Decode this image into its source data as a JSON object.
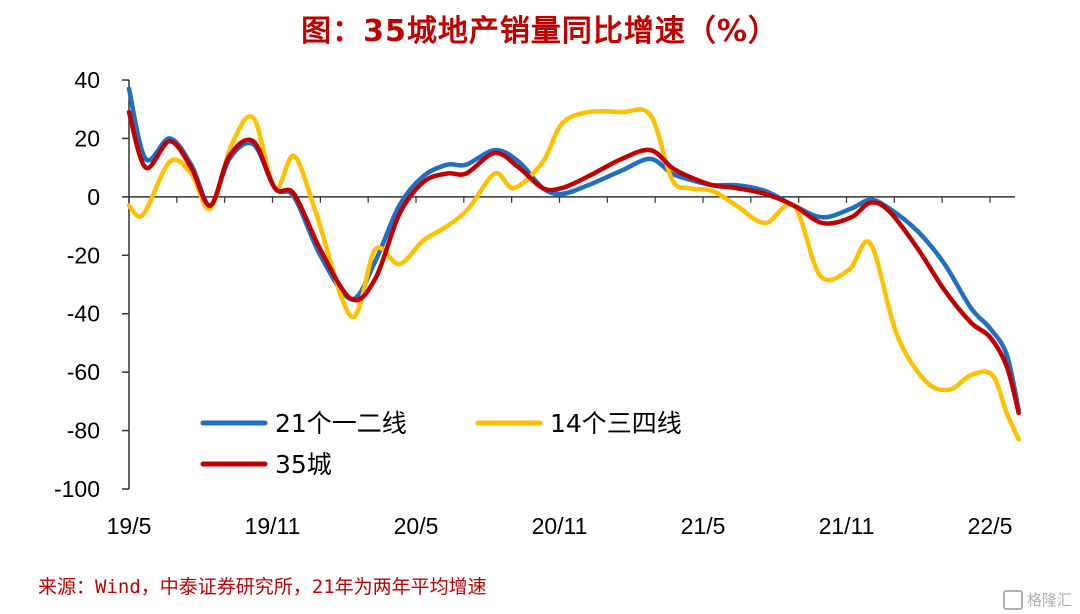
{
  "chart_data": {
    "type": "line",
    "title": "图：35城地产销量同比增速（%）",
    "xlabel": "",
    "ylabel": "",
    "ylim": [
      -100,
      40
    ],
    "yticks": [
      40,
      20,
      0,
      -20,
      -40,
      -60,
      -80,
      -100
    ],
    "xlim": [
      0,
      36
    ],
    "xticks": [
      {
        "x": 0,
        "label": "19/5"
      },
      {
        "x": 6,
        "label": "19/11"
      },
      {
        "x": 12,
        "label": "20/5"
      },
      {
        "x": 18,
        "label": "20/11"
      },
      {
        "x": 24,
        "label": "21/5"
      },
      {
        "x": 30,
        "label": "21/11"
      },
      {
        "x": 36,
        "label": "22/5"
      }
    ],
    "grid": false,
    "legend_position": "bottom-left",
    "series": [
      {
        "name": "21个一二线",
        "color": "#1f6fc4",
        "points": [
          [
            0,
            37
          ],
          [
            0.7,
            13
          ],
          [
            1.7,
            20
          ],
          [
            2.6,
            11
          ],
          [
            3.4,
            -3
          ],
          [
            4.2,
            13
          ],
          [
            5.2,
            18
          ],
          [
            6.1,
            3
          ],
          [
            6.9,
            0
          ],
          [
            8,
            -20
          ],
          [
            9.3,
            -35
          ],
          [
            10.3,
            -22
          ],
          [
            11.3,
            -3
          ],
          [
            12.3,
            7
          ],
          [
            13.3,
            11
          ],
          [
            14.1,
            11
          ],
          [
            15.3,
            16
          ],
          [
            16.3,
            12
          ],
          [
            17.3,
            3
          ],
          [
            18.1,
            1
          ],
          [
            19.2,
            4
          ],
          [
            20.6,
            9
          ],
          [
            21.8,
            13
          ],
          [
            22.7,
            8
          ],
          [
            23.4,
            6
          ],
          [
            24.4,
            4
          ],
          [
            25.4,
            4
          ],
          [
            26.6,
            2
          ],
          [
            27.8,
            -3
          ],
          [
            29,
            -7
          ],
          [
            30.2,
            -4
          ],
          [
            31,
            -1
          ],
          [
            31.8,
            -4
          ],
          [
            33,
            -12
          ],
          [
            34.1,
            -23
          ],
          [
            35.2,
            -38
          ],
          [
            36,
            -45
          ],
          [
            36.7,
            -54
          ],
          [
            37.2,
            -73
          ]
        ]
      },
      {
        "name": "14个三四线",
        "color": "#ffc000",
        "points": [
          [
            0,
            -3
          ],
          [
            0.6,
            -6
          ],
          [
            1.7,
            12
          ],
          [
            2.6,
            8
          ],
          [
            3.4,
            -4
          ],
          [
            4.3,
            18
          ],
          [
            5.2,
            27
          ],
          [
            6.1,
            3
          ],
          [
            6.9,
            14
          ],
          [
            7.8,
            -5
          ],
          [
            9.3,
            -41
          ],
          [
            10.3,
            -18
          ],
          [
            11.3,
            -23
          ],
          [
            12.3,
            -15
          ],
          [
            13.3,
            -10
          ],
          [
            14.2,
            -4
          ],
          [
            15.3,
            8
          ],
          [
            16.1,
            3
          ],
          [
            17.3,
            12
          ],
          [
            18.1,
            25
          ],
          [
            19.2,
            29
          ],
          [
            20.6,
            29
          ],
          [
            21.8,
            28
          ],
          [
            22.7,
            6
          ],
          [
            23.4,
            3
          ],
          [
            24.4,
            2
          ],
          [
            25.4,
            -3
          ],
          [
            26.6,
            -9
          ],
          [
            27.8,
            -3
          ],
          [
            28.9,
            -27
          ],
          [
            30.1,
            -25
          ],
          [
            31,
            -16
          ],
          [
            32.1,
            -47
          ],
          [
            33.3,
            -63
          ],
          [
            34.3,
            -66
          ],
          [
            35.2,
            -61
          ],
          [
            36.1,
            -61
          ],
          [
            36.7,
            -74
          ],
          [
            37.2,
            -83
          ]
        ]
      },
      {
        "name": "35城",
        "color": "#c00000",
        "points": [
          [
            0,
            29
          ],
          [
            0.7,
            10
          ],
          [
            1.7,
            19
          ],
          [
            2.6,
            10
          ],
          [
            3.4,
            -3
          ],
          [
            4.2,
            14
          ],
          [
            5.2,
            19
          ],
          [
            6.1,
            3
          ],
          [
            6.9,
            1
          ],
          [
            8,
            -18
          ],
          [
            9.3,
            -35
          ],
          [
            10.3,
            -28
          ],
          [
            11.3,
            -6
          ],
          [
            12.3,
            5
          ],
          [
            13.3,
            8
          ],
          [
            14.1,
            8
          ],
          [
            15.3,
            15
          ],
          [
            16.3,
            10
          ],
          [
            17.3,
            3
          ],
          [
            18.1,
            3
          ],
          [
            19.2,
            7
          ],
          [
            20.6,
            13
          ],
          [
            21.8,
            16
          ],
          [
            22.7,
            10
          ],
          [
            23.4,
            7
          ],
          [
            24.4,
            4
          ],
          [
            25.4,
            3
          ],
          [
            26.6,
            1
          ],
          [
            27.8,
            -3
          ],
          [
            29,
            -9
          ],
          [
            30.2,
            -7
          ],
          [
            31,
            -2
          ],
          [
            31.8,
            -5
          ],
          [
            33,
            -18
          ],
          [
            34.1,
            -32
          ],
          [
            35.2,
            -43
          ],
          [
            36,
            -48
          ],
          [
            36.7,
            -58
          ],
          [
            37.2,
            -74
          ]
        ]
      }
    ]
  },
  "source_note": "来源：Wind，中泰证券研究所，21年为两年平均增速",
  "watermark": "格隆汇"
}
